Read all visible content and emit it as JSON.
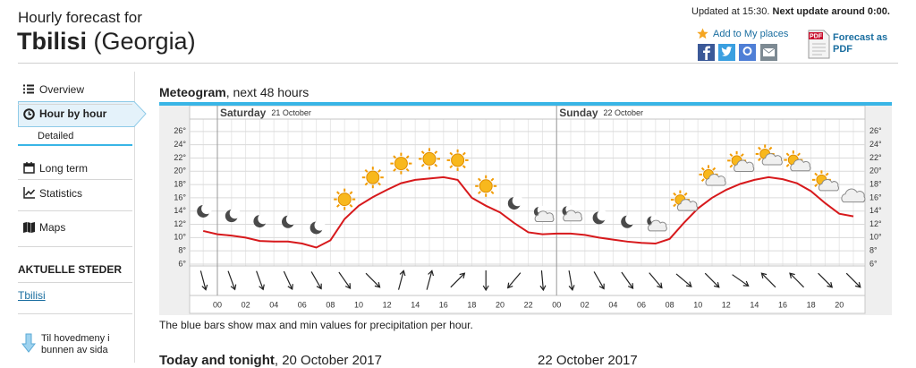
{
  "header": {
    "title": "Hourly forecast for",
    "city": "Tbilisi",
    "country": "(Georgia)",
    "updated": "Updated at 15:30.",
    "next_update": "Next update around 0:00.",
    "add_to_places": "Add to My places",
    "pdf_icon": "PDF",
    "pdf_link": "Forecast as PDF"
  },
  "sidebar": {
    "menu": [
      "Overview",
      "Hour by hour",
      "Detailed",
      "Long term",
      "Statistics",
      "Maps"
    ],
    "section": "AKTUELLE STEDER",
    "places": [
      "Tbilisi"
    ],
    "back": "Til hovedmeny i bunnen av sida"
  },
  "chart_data": {
    "type": "line",
    "title": "Meteogram",
    "subtitle": ", next 48 hours",
    "note": "The blue bars show max and min values for precipitation per hour.",
    "days": [
      {
        "day": "Saturday",
        "date": "21 October"
      },
      {
        "day": "Sunday",
        "date": "22 October"
      }
    ],
    "categories": [
      null,
      "00",
      null,
      "02",
      null,
      "04",
      null,
      "06",
      null,
      "08",
      null,
      "10",
      null,
      "12",
      null,
      "14",
      null,
      "16",
      null,
      "18",
      null,
      "20",
      null,
      "22",
      null,
      "00",
      null,
      "02",
      null,
      "04",
      null,
      "06",
      null,
      "08",
      null,
      "10",
      null,
      "12",
      null,
      "14",
      null,
      "16",
      null,
      "18",
      null,
      "20",
      null
    ],
    "values": [
      11.0,
      10.5,
      10.3,
      10.0,
      9.5,
      9.4,
      9.4,
      9.1,
      8.5,
      9.6,
      12.8,
      14.8,
      16.1,
      17.2,
      18.2,
      18.7,
      18.9,
      19.1,
      18.7,
      16.0,
      14.8,
      13.8,
      12.2,
      10.8,
      10.5,
      10.6,
      10.6,
      10.4,
      10.0,
      9.7,
      9.4,
      9.2,
      9.1,
      9.8,
      12.2,
      14.4,
      16.0,
      17.2,
      18.1,
      18.7,
      19.1,
      18.8,
      18.2,
      17.0,
      15.2,
      13.6,
      13.2
    ],
    "color": "#d7191c",
    "wind_directions": [
      165,
      160,
      160,
      155,
      150,
      145,
      135,
      15,
      15,
      45,
      180,
      220,
      175,
      170,
      150,
      145,
      140,
      130,
      135,
      125,
      315,
      315,
      135,
      135
    ],
    "ylim": [
      6,
      28
    ],
    "yticks": [
      {
        "value": 6,
        "label": "6°"
      },
      {
        "value": 8,
        "label": "8°"
      },
      {
        "value": 10,
        "label": "10°"
      },
      {
        "value": 12,
        "label": "12°"
      },
      {
        "value": 14,
        "label": "14°"
      },
      {
        "value": 16,
        "label": "16°"
      },
      {
        "value": 18,
        "label": "18°"
      },
      {
        "value": 20,
        "label": "20°"
      },
      {
        "value": 22,
        "label": "22°"
      },
      {
        "value": 24,
        "label": "24°"
      },
      {
        "value": 26,
        "label": "26°"
      }
    ],
    "grid": true
  },
  "sections": [
    {
      "title": "Today and tonight",
      "date": ", 20 October 2017"
    },
    {
      "date": "22 October 2017"
    }
  ]
}
